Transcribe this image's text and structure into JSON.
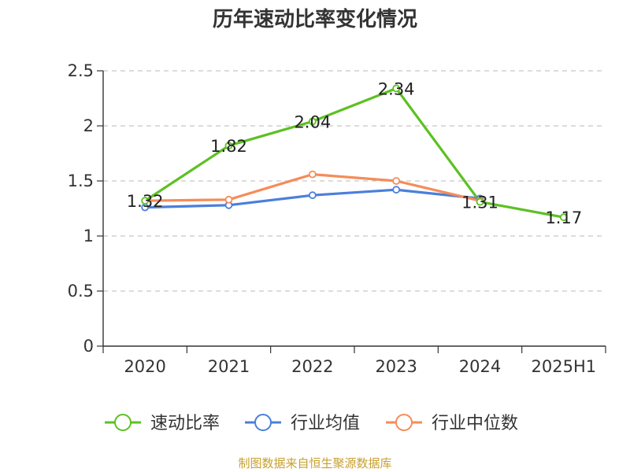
{
  "chart_data": {
    "type": "line",
    "title": "历年速动比率变化情况",
    "categories": [
      "2020",
      "2021",
      "2022",
      "2023",
      "2024",
      "2025H1"
    ],
    "ylim": [
      0,
      2.5
    ],
    "yticks": [
      0,
      0.5,
      1,
      1.5,
      2,
      2.5
    ],
    "ytick_labels": [
      "0",
      "0.5",
      "1",
      "1.5",
      "2",
      "2.5"
    ],
    "grid": true,
    "legend_position": "bottom",
    "series": [
      {
        "name": "速动比率",
        "color": "#5cc121",
        "values": [
          1.32,
          1.82,
          2.04,
          2.34,
          1.31,
          1.17
        ],
        "labels": [
          "1.32",
          "1.82",
          "2.04",
          "2.34",
          "1.31",
          "1.17"
        ]
      },
      {
        "name": "行业均值",
        "color": "#4a7fdc",
        "values": [
          1.26,
          1.28,
          1.37,
          1.42,
          1.34,
          null
        ]
      },
      {
        "name": "行业中位数",
        "color": "#f58c5a",
        "values": [
          1.32,
          1.33,
          1.56,
          1.5,
          1.32,
          null
        ]
      }
    ]
  },
  "footer": {
    "source": "制图数据来自恒生聚源数据库"
  }
}
